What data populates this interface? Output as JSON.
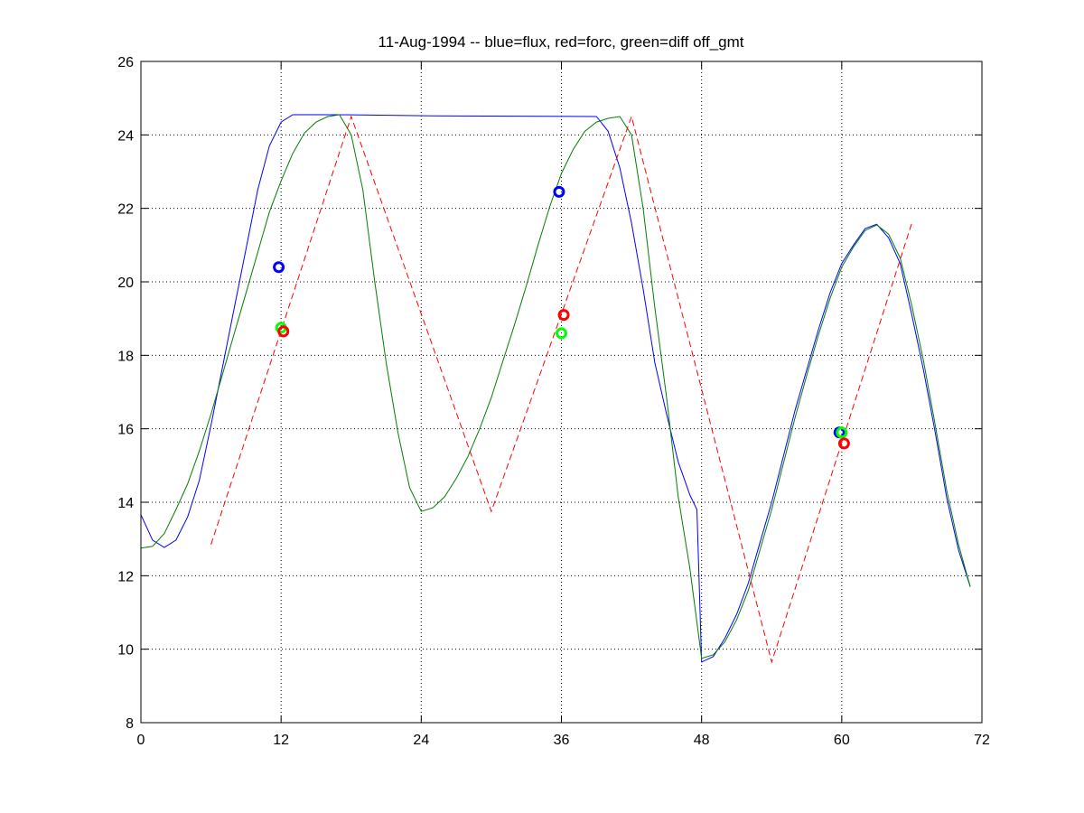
{
  "chart_data": {
    "type": "line",
    "title": "11-Aug-1994 -- blue=flux, red=forc, green=diff off_gmt",
    "xlabel": "",
    "ylabel": "",
    "xlim": [
      0,
      72
    ],
    "ylim": [
      8,
      26
    ],
    "xticks": [
      0,
      12,
      24,
      36,
      48,
      60,
      72
    ],
    "yticks": [
      8,
      10,
      12,
      14,
      16,
      18,
      20,
      22,
      24,
      26
    ],
    "grid": true,
    "legend": "none",
    "series": [
      {
        "name": "flux",
        "color": "#0000ff",
        "style": "solid",
        "x": [
          0,
          1,
          2,
          3,
          4,
          5,
          6,
          7,
          8,
          9,
          10,
          11,
          12,
          13,
          14,
          17,
          25,
          39,
          40,
          41,
          42,
          43,
          44,
          45,
          46,
          47,
          47.6,
          48,
          49,
          50,
          51,
          52,
          53,
          54,
          55,
          56,
          57,
          58,
          59,
          60,
          61,
          62,
          63,
          64,
          65,
          66,
          67,
          68,
          69,
          70,
          71
        ],
        "y": [
          13.66,
          12.97,
          12.77,
          12.97,
          13.6,
          14.6,
          16.1,
          17.7,
          19.3,
          20.9,
          22.5,
          23.7,
          24.35,
          24.55,
          24.55,
          24.55,
          24.52,
          24.5,
          24.1,
          23.1,
          21.6,
          19.8,
          17.8,
          16.4,
          15.1,
          14.2,
          13.8,
          9.65,
          9.8,
          10.3,
          10.95,
          11.8,
          12.9,
          14.0,
          15.25,
          16.5,
          17.6,
          18.7,
          19.7,
          20.5,
          21.0,
          21.45,
          21.57,
          21.2,
          20.5,
          19.1,
          17.6,
          15.9,
          14.1,
          12.7,
          11.7
        ]
      },
      {
        "name": "diff off_gmt",
        "color": "#007f00",
        "style": "solid",
        "x": [
          0,
          1,
          2,
          3,
          4,
          5,
          6,
          7,
          8,
          9,
          10,
          11,
          12,
          13,
          14,
          15,
          16,
          17,
          18,
          19,
          20,
          21,
          22,
          23,
          24,
          25,
          26,
          27,
          28,
          29,
          30,
          31,
          32,
          33,
          34,
          35,
          36,
          37,
          38,
          39,
          40,
          41,
          42,
          43,
          44,
          45,
          46,
          47,
          48,
          49,
          50,
          51,
          52,
          53,
          54,
          55,
          56,
          57,
          58,
          59,
          60,
          61,
          62,
          63,
          64,
          65,
          66,
          67,
          68,
          69,
          70,
          71
        ],
        "y": [
          12.75,
          12.8,
          13.15,
          13.8,
          14.5,
          15.4,
          16.4,
          17.5,
          18.6,
          19.7,
          20.8,
          21.9,
          22.75,
          23.5,
          24.05,
          24.35,
          24.5,
          24.55,
          24.0,
          22.5,
          20.05,
          17.8,
          15.9,
          14.4,
          13.75,
          13.85,
          14.15,
          14.65,
          15.25,
          16.0,
          16.85,
          17.85,
          18.85,
          19.9,
          21.0,
          22.05,
          22.95,
          23.6,
          24.1,
          24.35,
          24.45,
          24.5,
          24.0,
          22.0,
          19.3,
          16.85,
          14.15,
          12.2,
          9.75,
          9.85,
          10.2,
          10.8,
          11.6,
          12.7,
          13.8,
          15.05,
          16.3,
          17.45,
          18.55,
          19.55,
          20.4,
          20.95,
          21.4,
          21.55,
          21.3,
          20.65,
          19.35,
          17.85,
          16.1,
          14.3,
          12.85,
          11.7
        ]
      },
      {
        "name": "forc",
        "color": "#ff0000",
        "style": "dashed",
        "x": [
          6,
          18,
          30,
          42,
          54,
          66
        ],
        "y": [
          12.85,
          24.5,
          13.75,
          24.5,
          9.65,
          21.6
        ]
      }
    ],
    "markers": [
      {
        "name": "flux",
        "color": "#0000ff",
        "x": [
          11.8,
          35.8,
          59.8
        ],
        "y": [
          20.4,
          22.45,
          15.9
        ]
      },
      {
        "name": "diff off_gmt",
        "color": "#00ff00",
        "x": [
          12.0,
          36.0,
          60.0
        ],
        "y": [
          18.75,
          18.6,
          15.9
        ]
      },
      {
        "name": "forc",
        "color": "#ff0000",
        "x": [
          12.2,
          36.2,
          60.2
        ],
        "y": [
          18.65,
          19.1,
          15.6
        ]
      }
    ]
  }
}
